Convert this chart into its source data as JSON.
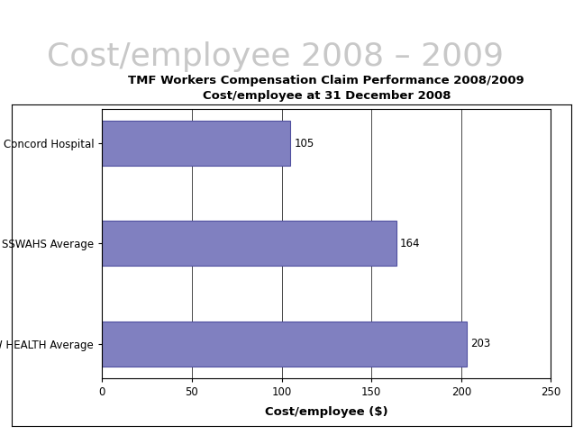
{
  "title_line1": "TMF Workers Compensation Claim Performance 2008/2009",
  "title_line2": "Cost/employee at 31 December 2008",
  "super_title": "Cost/employee 2008 – 2009",
  "categories": [
    "NSW HEALTH Average",
    "SSWAHS Average",
    "Concord Hospital"
  ],
  "values": [
    203,
    164,
    105
  ],
  "bar_color": "#8080c0",
  "bar_edgecolor": "#5050a0",
  "xlabel": "Cost/employee ($)",
  "xlim": [
    0,
    250
  ],
  "xticks": [
    0,
    50,
    100,
    150,
    200,
    250
  ],
  "value_labels": [
    "203",
    "164",
    "105"
  ],
  "title_fontsize": 9.5,
  "xlabel_fontsize": 9.5,
  "tick_fontsize": 8.5,
  "label_fontsize": 8.5,
  "super_title_color": "#c8c8c8",
  "super_title_fontsize": 26,
  "background_color": "#ffffff",
  "fig_background": "#ffffff",
  "bar_height": 0.45
}
